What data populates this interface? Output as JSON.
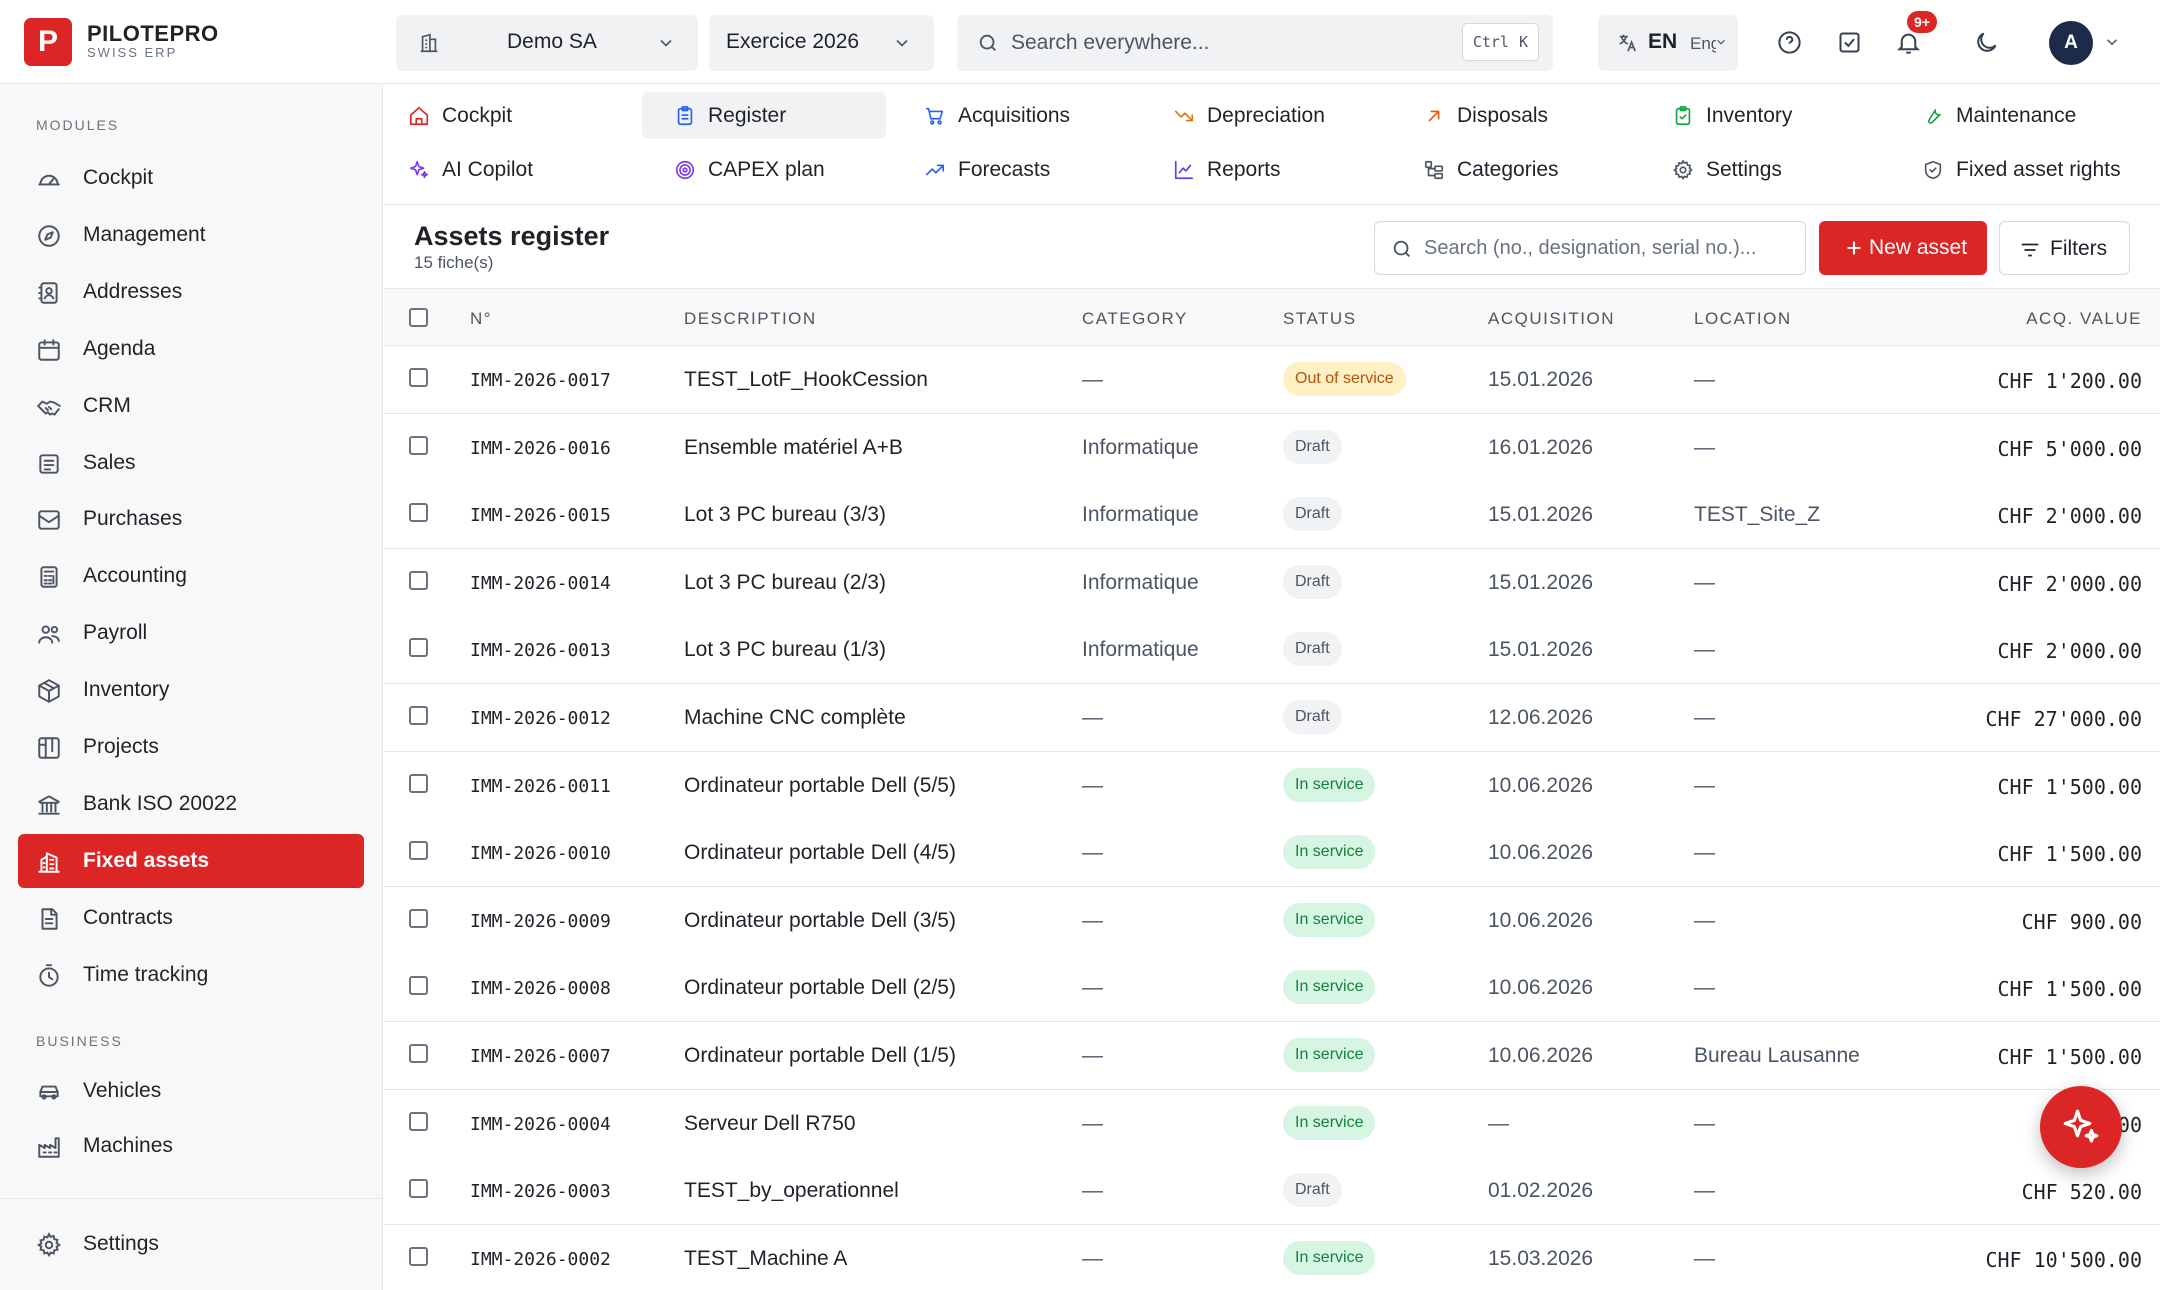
{
  "brand": {
    "name": "PILOTEPRO",
    "sub": "SWISS ERP",
    "logo_letter": "P",
    "accent": "#dc2626"
  },
  "topbar": {
    "company": "Demo SA",
    "year": "Exercice 2026",
    "search_placeholder": "Search everywhere...",
    "shortcut_ctrl": "Ctrl",
    "shortcut_key": "K",
    "lang": "EN",
    "lang_sub": "English",
    "notif_badge": "9+",
    "avatar": "A"
  },
  "sidebar": {
    "modules_label": "MODULES",
    "business_label": "BUSINESS",
    "modules": [
      {
        "label": "Cockpit",
        "icon": "gauge-icon"
      },
      {
        "label": "Management",
        "icon": "compass-icon"
      },
      {
        "label": "Addresses",
        "icon": "contact-book-icon"
      },
      {
        "label": "Agenda",
        "icon": "calendar-icon"
      },
      {
        "label": "CRM",
        "icon": "handshake-icon"
      },
      {
        "label": "Sales",
        "icon": "receipt-icon"
      },
      {
        "label": "Purchases",
        "icon": "inbox-icon"
      },
      {
        "label": "Accounting",
        "icon": "calculator-icon"
      },
      {
        "label": "Payroll",
        "icon": "users-icon"
      },
      {
        "label": "Inventory",
        "icon": "package-icon"
      },
      {
        "label": "Projects",
        "icon": "kanban-icon"
      },
      {
        "label": "Bank ISO 20022",
        "icon": "bank-icon"
      },
      {
        "label": "Fixed assets",
        "icon": "building-icon",
        "active": true
      },
      {
        "label": "Contracts",
        "icon": "document-icon"
      },
      {
        "label": "Time tracking",
        "icon": "timer-icon"
      }
    ],
    "business": [
      {
        "label": "Vehicles",
        "icon": "car-icon"
      },
      {
        "label": "Machines",
        "icon": "factory-icon"
      }
    ],
    "settings": "Settings"
  },
  "tabs": [
    {
      "label": "Cockpit",
      "icon": "house-icon"
    },
    {
      "label": "Register",
      "icon": "clipboard-icon",
      "active": true
    },
    {
      "label": "Acquisitions",
      "icon": "cart-icon"
    },
    {
      "label": "Depreciation",
      "icon": "trend-down-icon"
    },
    {
      "label": "Disposals",
      "icon": "arrow-up-right-icon"
    },
    {
      "label": "Inventory",
      "icon": "clipboard-check-icon"
    },
    {
      "label": "Maintenance",
      "icon": "wrench-icon"
    },
    {
      "label": "AI Copilot",
      "icon": "sparkles-icon"
    },
    {
      "label": "CAPEX plan",
      "icon": "target-icon"
    },
    {
      "label": "Forecasts",
      "icon": "trend-up-icon"
    },
    {
      "label": "Reports",
      "icon": "line-chart-icon"
    },
    {
      "label": "Categories",
      "icon": "hierarchy-icon"
    },
    {
      "label": "Settings",
      "icon": "gear-icon"
    },
    {
      "label": "Fixed asset rights",
      "icon": "shield-icon"
    }
  ],
  "page": {
    "title": "Assets register",
    "count": "15 fiche(s)",
    "search_placeholder": "Search (no., designation, serial no.)...",
    "new_button": "New asset",
    "filters_button": "Filters"
  },
  "table": {
    "headers": [
      "N°",
      "DESCRIPTION",
      "CATEGORY",
      "STATUS",
      "ACQUISITION",
      "LOCATION",
      "ACQ. VALUE"
    ],
    "rows": [
      {
        "no": "IMM-2026-0017",
        "desc": "TEST_LotF_HookCession",
        "cat": "—",
        "status": "Out of service",
        "kind": "out",
        "acq": "15.01.2026",
        "loc": "—",
        "val": "CHF 1'200.00"
      },
      {
        "no": "IMM-2026-0016",
        "desc": "Ensemble matériel A+B",
        "cat": "Informatique",
        "status": "Draft",
        "kind": "draft",
        "acq": "16.01.2026",
        "loc": "—",
        "val": "CHF 5'000.00"
      },
      {
        "no": "IMM-2026-0015",
        "desc": "Lot 3 PC bureau (3/3)",
        "cat": "Informatique",
        "status": "Draft",
        "kind": "draft",
        "acq": "15.01.2026",
        "loc": "TEST_Site_Z",
        "val": "CHF 2'000.00"
      },
      {
        "no": "IMM-2026-0014",
        "desc": "Lot 3 PC bureau (2/3)",
        "cat": "Informatique",
        "status": "Draft",
        "kind": "draft",
        "acq": "15.01.2026",
        "loc": "—",
        "val": "CHF 2'000.00"
      },
      {
        "no": "IMM-2026-0013",
        "desc": "Lot 3 PC bureau (1/3)",
        "cat": "Informatique",
        "status": "Draft",
        "kind": "draft",
        "acq": "15.01.2026",
        "loc": "—",
        "val": "CHF 2'000.00"
      },
      {
        "no": "IMM-2026-0012",
        "desc": "Machine CNC complète",
        "cat": "—",
        "status": "Draft",
        "kind": "draft",
        "acq": "12.06.2026",
        "loc": "—",
        "val": "CHF 27'000.00"
      },
      {
        "no": "IMM-2026-0011",
        "desc": "Ordinateur portable Dell (5/5)",
        "cat": "—",
        "status": "In service",
        "kind": "in",
        "acq": "10.06.2026",
        "loc": "—",
        "val": "CHF 1'500.00"
      },
      {
        "no": "IMM-2026-0010",
        "desc": "Ordinateur portable Dell (4/5)",
        "cat": "—",
        "status": "In service",
        "kind": "in",
        "acq": "10.06.2026",
        "loc": "—",
        "val": "CHF 1'500.00"
      },
      {
        "no": "IMM-2026-0009",
        "desc": "Ordinateur portable Dell (3/5)",
        "cat": "—",
        "status": "In service",
        "kind": "in",
        "acq": "10.06.2026",
        "loc": "—",
        "val": "CHF 900.00"
      },
      {
        "no": "IMM-2026-0008",
        "desc": "Ordinateur portable Dell (2/5)",
        "cat": "—",
        "status": "In service",
        "kind": "in",
        "acq": "10.06.2026",
        "loc": "—",
        "val": "CHF 1'500.00"
      },
      {
        "no": "IMM-2026-0007",
        "desc": "Ordinateur portable Dell (1/5)",
        "cat": "—",
        "status": "In service",
        "kind": "in",
        "acq": "10.06.2026",
        "loc": "Bureau Lausanne",
        "val": "CHF 1'500.00"
      },
      {
        "no": "IMM-2026-0004",
        "desc": "Serveur Dell R750",
        "cat": "—",
        "status": "In service",
        "kind": "in",
        "acq": "—",
        "loc": "—",
        "val": "00"
      },
      {
        "no": "IMM-2026-0003",
        "desc": "TEST_by_operationnel",
        "cat": "—",
        "status": "Draft",
        "kind": "draft",
        "acq": "01.02.2026",
        "loc": "—",
        "val": "CHF 520.00"
      },
      {
        "no": "IMM-2026-0002",
        "desc": "TEST_Machine A",
        "cat": "—",
        "status": "In service",
        "kind": "in",
        "acq": "15.03.2026",
        "loc": "—",
        "val": "CHF 10'500.00"
      }
    ]
  }
}
